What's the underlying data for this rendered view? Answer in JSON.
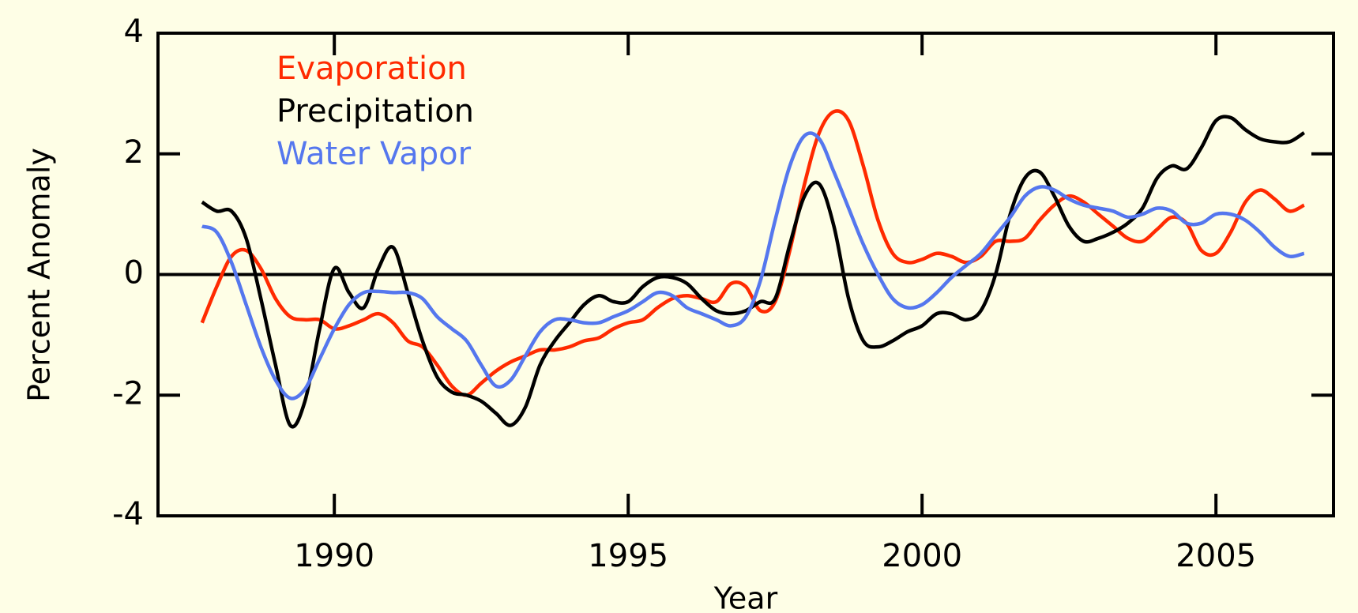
{
  "chart_data": {
    "type": "line",
    "x_label": "Year",
    "y_label": "Percent Anomaly",
    "xlim": [
      1987,
      2007
    ],
    "xticks": [
      1990,
      1995,
      2000,
      2005
    ],
    "ylim": [
      -4,
      4
    ],
    "yticks": [
      -4,
      -2,
      0,
      2,
      4
    ],
    "hlines": [
      0
    ],
    "x": [
      1987.75,
      1988.0,
      1988.25,
      1988.5,
      1988.75,
      1989.0,
      1989.25,
      1989.5,
      1989.75,
      1990.0,
      1990.25,
      1990.5,
      1990.75,
      1991.0,
      1991.25,
      1991.5,
      1991.75,
      1992.0,
      1992.25,
      1992.5,
      1992.75,
      1993.0,
      1993.25,
      1993.5,
      1993.75,
      1994.0,
      1994.25,
      1994.5,
      1994.75,
      1995.0,
      1995.25,
      1995.5,
      1995.75,
      1996.0,
      1996.25,
      1996.5,
      1996.75,
      1997.0,
      1997.25,
      1997.5,
      1997.75,
      1998.0,
      1998.25,
      1998.5,
      1998.75,
      1999.0,
      1999.25,
      1999.5,
      1999.75,
      2000.0,
      2000.25,
      2000.5,
      2000.75,
      2001.0,
      2001.25,
      2001.5,
      2001.75,
      2002.0,
      2002.25,
      2002.5,
      2002.75,
      2003.0,
      2003.25,
      2003.5,
      2003.75,
      2004.0,
      2004.25,
      2004.5,
      2004.75,
      2005.0,
      2005.25,
      2005.5,
      2005.75,
      2006.0,
      2006.25,
      2006.5
    ],
    "series": [
      {
        "name": "Evaporation",
        "color": "#ff2a00",
        "values": [
          -0.8,
          -0.2,
          0.3,
          0.4,
          0.1,
          -0.4,
          -0.7,
          -0.75,
          -0.75,
          -0.9,
          -0.85,
          -0.75,
          -0.65,
          -0.8,
          -1.1,
          -1.2,
          -1.5,
          -1.85,
          -2.0,
          -1.8,
          -1.6,
          -1.45,
          -1.35,
          -1.25,
          -1.25,
          -1.2,
          -1.1,
          -1.05,
          -0.9,
          -0.8,
          -0.75,
          -0.55,
          -0.4,
          -0.35,
          -0.4,
          -0.45,
          -0.15,
          -0.2,
          -0.6,
          -0.45,
          0.4,
          1.5,
          2.35,
          2.7,
          2.55,
          1.8,
          0.9,
          0.35,
          0.2,
          0.25,
          0.35,
          0.3,
          0.2,
          0.3,
          0.55,
          0.55,
          0.6,
          0.9,
          1.15,
          1.3,
          1.2,
          1.0,
          0.8,
          0.6,
          0.55,
          0.75,
          0.95,
          0.85,
          0.4,
          0.35,
          0.7,
          1.2,
          1.4,
          1.25,
          1.05,
          1.15
        ]
      },
      {
        "name": "Precipitation",
        "color": "#000000",
        "values": [
          1.2,
          1.05,
          1.05,
          0.6,
          -0.4,
          -1.5,
          -2.5,
          -2.1,
          -0.9,
          0.1,
          -0.3,
          -0.55,
          0.1,
          0.45,
          -0.3,
          -1.1,
          -1.7,
          -1.95,
          -2.0,
          -2.1,
          -2.3,
          -2.5,
          -2.2,
          -1.5,
          -1.1,
          -0.8,
          -0.5,
          -0.35,
          -0.45,
          -0.45,
          -0.2,
          -0.05,
          -0.05,
          -0.15,
          -0.4,
          -0.6,
          -0.65,
          -0.6,
          -0.45,
          -0.4,
          0.5,
          1.3,
          1.5,
          0.8,
          -0.4,
          -1.1,
          -1.2,
          -1.1,
          -0.95,
          -0.85,
          -0.65,
          -0.65,
          -0.75,
          -0.6,
          0.0,
          1.0,
          1.6,
          1.7,
          1.3,
          0.8,
          0.55,
          0.6,
          0.7,
          0.85,
          1.1,
          1.6,
          1.8,
          1.75,
          2.1,
          2.55,
          2.6,
          2.4,
          2.25,
          2.2,
          2.2,
          2.35
        ]
      },
      {
        "name": "Water Vapor",
        "color": "#5577ee",
        "values": [
          0.8,
          0.7,
          0.2,
          -0.5,
          -1.2,
          -1.75,
          -2.05,
          -1.9,
          -1.4,
          -0.9,
          -0.5,
          -0.3,
          -0.28,
          -0.3,
          -0.3,
          -0.4,
          -0.7,
          -0.9,
          -1.1,
          -1.5,
          -1.85,
          -1.75,
          -1.35,
          -0.95,
          -0.75,
          -0.75,
          -0.8,
          -0.8,
          -0.7,
          -0.6,
          -0.45,
          -0.3,
          -0.35,
          -0.55,
          -0.65,
          -0.75,
          -0.85,
          -0.7,
          -0.1,
          0.9,
          1.8,
          2.3,
          2.25,
          1.7,
          1.1,
          0.5,
          0.0,
          -0.4,
          -0.55,
          -0.5,
          -0.3,
          -0.05,
          0.15,
          0.35,
          0.65,
          0.95,
          1.3,
          1.45,
          1.4,
          1.25,
          1.15,
          1.1,
          1.05,
          0.95,
          1.0,
          1.1,
          1.05,
          0.85,
          0.85,
          1.0,
          1.0,
          0.9,
          0.7,
          0.45,
          0.3,
          0.35
        ]
      }
    ]
  }
}
